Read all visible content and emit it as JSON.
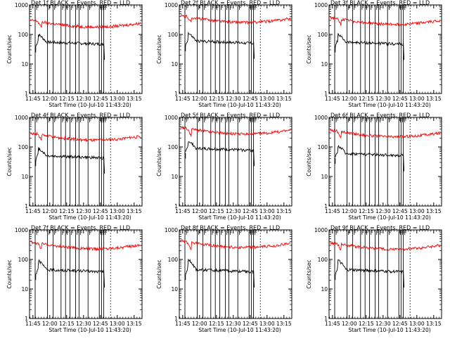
{
  "page": {
    "background": "#ffffff"
  },
  "colors": {
    "events": "#000000",
    "lld": "#ff0000",
    "frame": "#000000"
  },
  "chart_data": [
    {
      "type": "line",
      "title": "Det  1f  BLACK = Events, RED = LLD",
      "xlabel": "Start Time (10-Jul-10 11:43:20)",
      "ylabel": "Counts/sec",
      "ylim": [
        1,
        1000
      ],
      "y_scale": "log",
      "x_tick_labels": [
        "11:45",
        "12:00",
        "12:15",
        "12:30",
        "12:45",
        "13:00",
        "13:15"
      ],
      "y_tick_labels": [
        "1000",
        "100",
        "10",
        "1"
      ],
      "series": [
        {
          "name": "Events",
          "color": "#000000",
          "level": 55,
          "peak": 100
        },
        {
          "name": "LLD",
          "color": "#ff0000",
          "level": 210,
          "peak": 310
        }
      ]
    },
    {
      "type": "line",
      "title": "Det  2f  BLACK = Events, RED = LLD",
      "xlabel": "Start Time (10-Jul-10 11:43:20)",
      "ylabel": "Counts/sec",
      "ylim": [
        1,
        1000
      ],
      "y_scale": "log",
      "x_tick_labels": [
        "11:45",
        "12:00",
        "12:15",
        "12:30",
        "12:45",
        "13:00",
        "13:15"
      ],
      "y_tick_labels": [
        "1000",
        "100",
        "10",
        "1"
      ],
      "series": [
        {
          "name": "Events",
          "color": "#000000",
          "level": 60,
          "peak": 110
        },
        {
          "name": "LLD",
          "color": "#ff0000",
          "level": 300,
          "peak": 450
        }
      ]
    },
    {
      "type": "line",
      "title": "Det  3f  BLACK = Events, RED = LLD",
      "xlabel": "Start Time (10-Jul-10 11:43:20)",
      "ylabel": "Counts/sec",
      "ylim": [
        1,
        1000
      ],
      "y_scale": "log",
      "x_tick_labels": [
        "11:45",
        "12:00",
        "12:15",
        "12:30",
        "12:45",
        "13:00",
        "13:15"
      ],
      "y_tick_labels": [
        "1000",
        "100",
        "10",
        "1"
      ],
      "series": [
        {
          "name": "Events",
          "color": "#000000",
          "level": 55,
          "peak": 100
        },
        {
          "name": "LLD",
          "color": "#ff0000",
          "level": 260,
          "peak": 380
        }
      ]
    },
    {
      "type": "line",
      "title": "Det  4f  BLACK = Events, RED = LLD",
      "xlabel": "Start Time (10-Jul-10 11:43:20)",
      "ylabel": "Counts/sec",
      "ylim": [
        1,
        1000
      ],
      "y_scale": "log",
      "x_tick_labels": [
        "11:45",
        "12:00",
        "12:15",
        "12:30",
        "12:45",
        "13:00",
        "13:15"
      ],
      "y_tick_labels": [
        "1000",
        "100",
        "10",
        "1"
      ],
      "series": [
        {
          "name": "Events",
          "color": "#000000",
          "level": 50,
          "peak": 90
        },
        {
          "name": "LLD",
          "color": "#ff0000",
          "level": 200,
          "peak": 300
        }
      ]
    },
    {
      "type": "line",
      "title": "Det  5f  BLACK = Events, RED = LLD",
      "xlabel": "Start Time (10-Jul-10 11:43:20)",
      "ylabel": "Counts/sec",
      "ylim": [
        1,
        1000
      ],
      "y_scale": "log",
      "x_tick_labels": [
        "11:45",
        "12:00",
        "12:15",
        "12:30",
        "12:45",
        "13:00",
        "13:15"
      ],
      "y_tick_labels": [
        "1000",
        "100",
        "10",
        "1"
      ],
      "series": [
        {
          "name": "Events",
          "color": "#000000",
          "level": 90,
          "peak": 160
        },
        {
          "name": "LLD",
          "color": "#ff0000",
          "level": 320,
          "peak": 450
        }
      ]
    },
    {
      "type": "line",
      "title": "Det  6f  BLACK = Events, RED = LLD",
      "xlabel": "Start Time (10-Jul-10 11:43:20)",
      "ylabel": "Counts/sec",
      "ylim": [
        1,
        1000
      ],
      "y_scale": "log",
      "x_tick_labels": [
        "11:45",
        "12:00",
        "12:15",
        "12:30",
        "12:45",
        "13:00",
        "13:15"
      ],
      "y_tick_labels": [
        "1000",
        "100",
        "10",
        "1"
      ],
      "series": [
        {
          "name": "Events",
          "color": "#000000",
          "level": 60,
          "peak": 110
        },
        {
          "name": "LLD",
          "color": "#ff0000",
          "level": 260,
          "peak": 380
        }
      ]
    },
    {
      "type": "line",
      "title": "Det  7f  BLACK = Events, RED = LLD",
      "xlabel": "Start Time (10-Jul-10 11:43:20)",
      "ylabel": "Counts/sec",
      "ylim": [
        1,
        1000
      ],
      "y_scale": "log",
      "x_tick_labels": [
        "11:45",
        "12:00",
        "12:15",
        "12:30",
        "12:45",
        "13:00",
        "13:15"
      ],
      "y_tick_labels": [
        "1000",
        "100",
        "10",
        "1"
      ],
      "series": [
        {
          "name": "Events",
          "color": "#000000",
          "level": 45,
          "peak": 90
        },
        {
          "name": "LLD",
          "color": "#ff0000",
          "level": 270,
          "peak": 400
        }
      ]
    },
    {
      "type": "line",
      "title": "Det  8f  BLACK = Events, RED = LLD",
      "xlabel": "Start Time (10-Jul-10 11:43:20)",
      "ylabel": "Counts/sec",
      "ylim": [
        1,
        1000
      ],
      "y_scale": "log",
      "x_tick_labels": [
        "11:45",
        "12:00",
        "12:15",
        "12:30",
        "12:45",
        "13:00",
        "13:15"
      ],
      "y_tick_labels": [
        "1000",
        "100",
        "10",
        "1"
      ],
      "series": [
        {
          "name": "Events",
          "color": "#000000",
          "level": 45,
          "peak": 100
        },
        {
          "name": "LLD",
          "color": "#ff0000",
          "level": 300,
          "peak": 420
        }
      ]
    },
    {
      "type": "line",
      "title": "Det  9f  BLACK = Events, RED = LLD",
      "xlabel": "Start Time (10-Jul-10 11:43:20)",
      "ylabel": "Counts/sec",
      "ylim": [
        1,
        1000
      ],
      "y_scale": "log",
      "x_tick_labels": [
        "11:45",
        "12:00",
        "12:15",
        "12:30",
        "12:45",
        "13:00",
        "13:15"
      ],
      "y_tick_labels": [
        "1000",
        "100",
        "10",
        "1"
      ],
      "series": [
        {
          "name": "Events",
          "color": "#000000",
          "level": 45,
          "peak": 95
        },
        {
          "name": "LLD",
          "color": "#ff0000",
          "level": 260,
          "peak": 380
        }
      ]
    }
  ]
}
